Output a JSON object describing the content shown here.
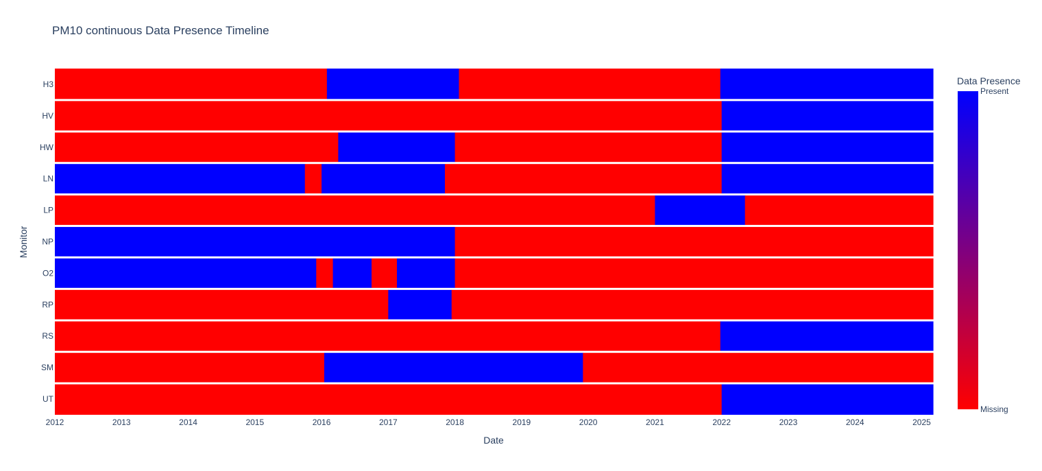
{
  "chart_data": {
    "type": "heatmap",
    "title": "PM10 continuous Data Presence Timeline",
    "xlabel": "Date",
    "ylabel": "Monitor",
    "xlim": [
      2012.0,
      2025.17
    ],
    "x_ticks": [
      "2012",
      "2013",
      "2014",
      "2015",
      "2016",
      "2017",
      "2018",
      "2019",
      "2020",
      "2021",
      "2022",
      "2023",
      "2024",
      "2025"
    ],
    "monitors": [
      "H3",
      "HV",
      "HW",
      "LN",
      "LP",
      "NP",
      "O2",
      "RP",
      "RS",
      "SM",
      "UT"
    ],
    "colorbar": {
      "title": "Data Presence",
      "max_label": "Present",
      "min_label": "Missing",
      "present_color": "#0000ff",
      "missing_color": "#ff0000",
      "position": "right"
    },
    "series": [
      {
        "monitor": "H3",
        "segments": [
          {
            "start": 2012.0,
            "end": 2016.08,
            "status": "Missing"
          },
          {
            "start": 2016.08,
            "end": 2018.06,
            "status": "Present"
          },
          {
            "start": 2018.06,
            "end": 2021.98,
            "status": "Missing"
          },
          {
            "start": 2021.98,
            "end": 2025.17,
            "status": "Present"
          }
        ]
      },
      {
        "monitor": "HV",
        "segments": [
          {
            "start": 2012.0,
            "end": 2022.0,
            "status": "Missing"
          },
          {
            "start": 2022.0,
            "end": 2025.17,
            "status": "Present"
          }
        ]
      },
      {
        "monitor": "HW",
        "segments": [
          {
            "start": 2012.0,
            "end": 2016.25,
            "status": "Missing"
          },
          {
            "start": 2016.25,
            "end": 2018.0,
            "status": "Present"
          },
          {
            "start": 2018.0,
            "end": 2022.0,
            "status": "Missing"
          },
          {
            "start": 2022.0,
            "end": 2025.17,
            "status": "Present"
          }
        ]
      },
      {
        "monitor": "LN",
        "segments": [
          {
            "start": 2012.0,
            "end": 2015.75,
            "status": "Present"
          },
          {
            "start": 2015.75,
            "end": 2016.0,
            "status": "Missing"
          },
          {
            "start": 2016.0,
            "end": 2017.85,
            "status": "Present"
          },
          {
            "start": 2017.85,
            "end": 2022.0,
            "status": "Missing"
          },
          {
            "start": 2022.0,
            "end": 2025.17,
            "status": "Present"
          }
        ]
      },
      {
        "monitor": "LP",
        "segments": [
          {
            "start": 2012.0,
            "end": 2021.0,
            "status": "Missing"
          },
          {
            "start": 2021.0,
            "end": 2022.35,
            "status": "Present"
          },
          {
            "start": 2022.35,
            "end": 2025.17,
            "status": "Missing"
          }
        ]
      },
      {
        "monitor": "NP",
        "segments": [
          {
            "start": 2012.0,
            "end": 2018.0,
            "status": "Present"
          },
          {
            "start": 2018.0,
            "end": 2025.17,
            "status": "Missing"
          }
        ]
      },
      {
        "monitor": "O2",
        "segments": [
          {
            "start": 2012.0,
            "end": 2015.92,
            "status": "Present"
          },
          {
            "start": 2015.92,
            "end": 2016.17,
            "status": "Missing"
          },
          {
            "start": 2016.17,
            "end": 2016.75,
            "status": "Present"
          },
          {
            "start": 2016.75,
            "end": 2017.13,
            "status": "Missing"
          },
          {
            "start": 2017.13,
            "end": 2018.0,
            "status": "Present"
          },
          {
            "start": 2018.0,
            "end": 2025.17,
            "status": "Missing"
          }
        ]
      },
      {
        "monitor": "RP",
        "segments": [
          {
            "start": 2012.0,
            "end": 2017.0,
            "status": "Missing"
          },
          {
            "start": 2017.0,
            "end": 2017.95,
            "status": "Present"
          },
          {
            "start": 2017.95,
            "end": 2025.17,
            "status": "Missing"
          }
        ]
      },
      {
        "monitor": "RS",
        "segments": [
          {
            "start": 2012.0,
            "end": 2021.98,
            "status": "Missing"
          },
          {
            "start": 2021.98,
            "end": 2025.17,
            "status": "Present"
          }
        ]
      },
      {
        "monitor": "SM",
        "segments": [
          {
            "start": 2012.0,
            "end": 2016.04,
            "status": "Missing"
          },
          {
            "start": 2016.04,
            "end": 2019.92,
            "status": "Present"
          },
          {
            "start": 2019.92,
            "end": 2025.17,
            "status": "Missing"
          }
        ]
      },
      {
        "monitor": "UT",
        "segments": [
          {
            "start": 2012.0,
            "end": 2022.0,
            "status": "Missing"
          },
          {
            "start": 2022.0,
            "end": 2025.17,
            "status": "Present"
          }
        ]
      }
    ]
  }
}
